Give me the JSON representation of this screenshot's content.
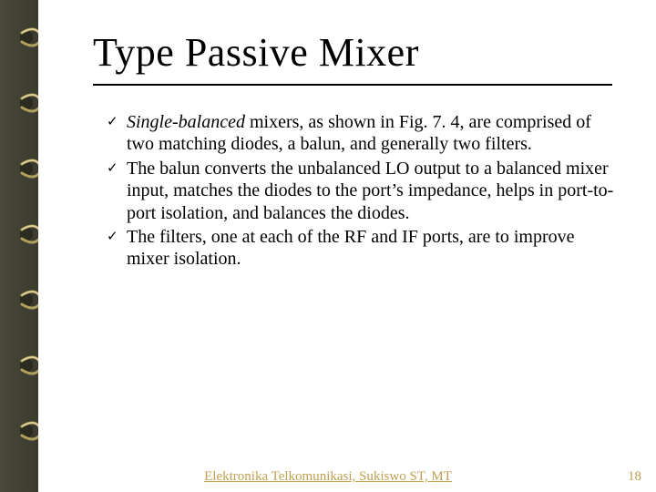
{
  "colors": {
    "background": "#ffffff",
    "binding": "#3f3f31",
    "ring_hole": "#2b2b1f",
    "ring_metal": "#b0a060",
    "text": "#000000",
    "footer": "#bfa050"
  },
  "typography": {
    "title_fontsize": 44,
    "body_fontsize": 20,
    "footer_fontsize": 15,
    "font_family": "Times New Roman"
  },
  "title": "Type Passive Mixer",
  "bullets": [
    {
      "marker": "✓",
      "runs": [
        {
          "text": "Single-balanced",
          "italic": true
        },
        {
          "text": " mixers, as shown in Fig. 7. 4, are comprised of two matching diodes, a balun, and generally two filters.",
          "italic": false
        }
      ]
    },
    {
      "marker": "✓",
      "runs": [
        {
          "text": "The balun converts the unbalanced LO output to a balanced mixer input, matches the diodes to the port’s impedance, helps in port-to-port isolation, and balances the diodes.",
          "italic": false
        }
      ]
    },
    {
      "marker": "✓",
      "runs": [
        {
          "text": "The filters, one at each of the RF and IF ports, are to improve mixer isolation.",
          "italic": false
        }
      ]
    }
  ],
  "footer": "Elektronika Telkomunikasi, Sukiswo ST, MT",
  "page_number": "18",
  "rings": {
    "count": 7,
    "top_positions": [
      28,
      100,
      172,
      244,
      316,
      388,
      460
    ]
  }
}
